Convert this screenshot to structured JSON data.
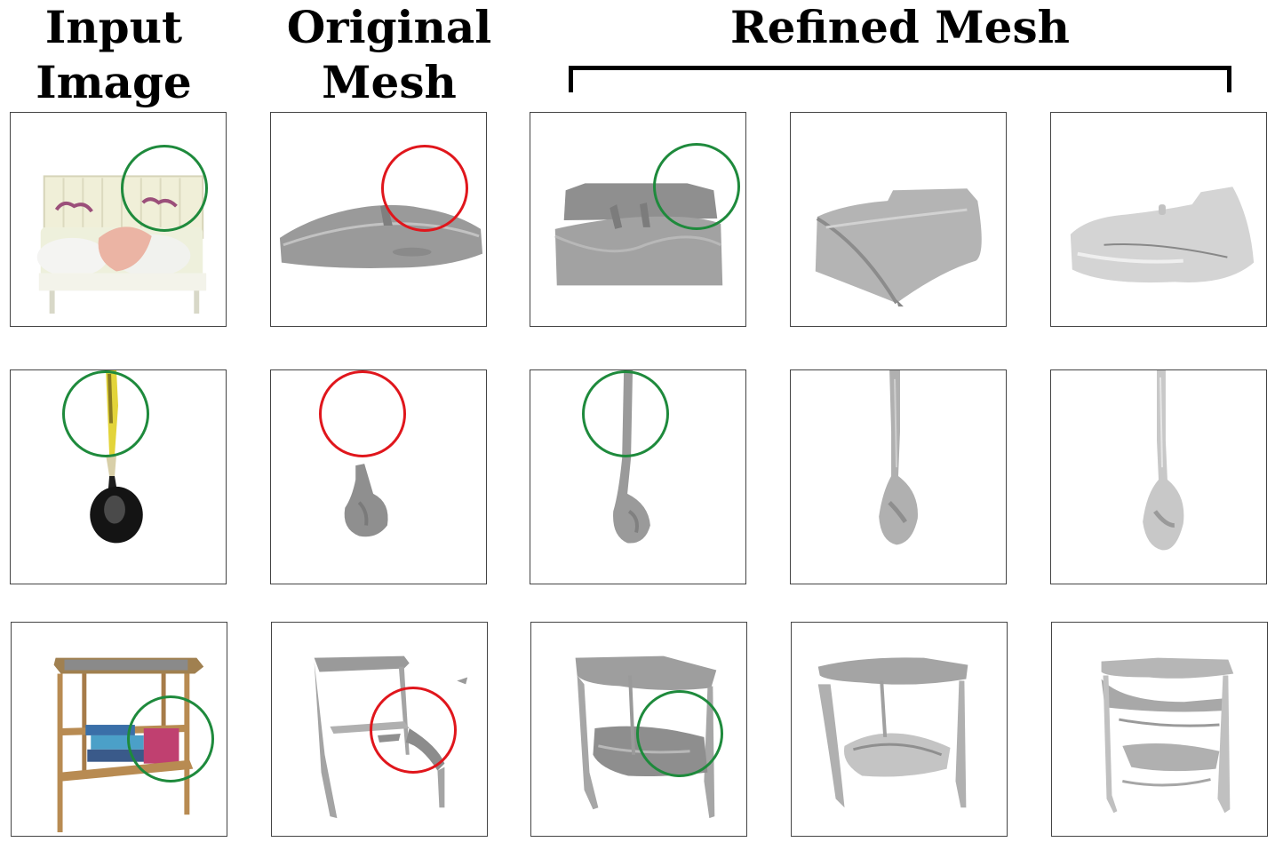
{
  "headers": {
    "input": [
      "Input",
      "Image"
    ],
    "original": [
      "Original",
      "Mesh"
    ],
    "refined": "Refined Mesh"
  },
  "colors": {
    "good_marker": "#1e8a3c",
    "bad_marker": "#e0161c",
    "mesh": "#9a9a9a",
    "panel_border": "#444444"
  },
  "rows": [
    {
      "object": "bed",
      "panels": [
        "bed-photo",
        "bed-mesh-original",
        "bed-mesh-refined-1",
        "bed-mesh-refined-2",
        "bed-mesh-refined-3"
      ]
    },
    {
      "object": "ladle",
      "panels": [
        "ladle-photo",
        "ladle-mesh-original",
        "ladle-mesh-refined-1",
        "ladle-mesh-refined-2",
        "ladle-mesh-refined-3"
      ]
    },
    {
      "object": "side-table",
      "panels": [
        "table-photo",
        "table-mesh-original",
        "table-mesh-refined-1",
        "table-mesh-refined-2",
        "table-mesh-refined-3"
      ]
    }
  ]
}
